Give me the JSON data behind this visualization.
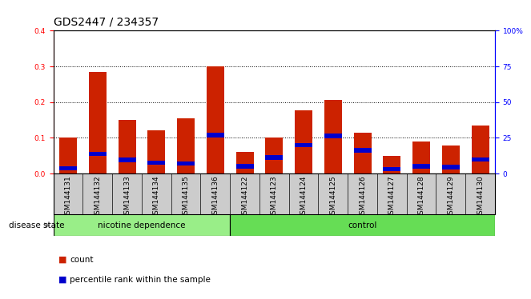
{
  "title": "GDS2447 / 234357",
  "samples": [
    "GSM144131",
    "GSM144132",
    "GSM144133",
    "GSM144134",
    "GSM144135",
    "GSM144136",
    "GSM144122",
    "GSM144123",
    "GSM144124",
    "GSM144125",
    "GSM144126",
    "GSM144127",
    "GSM144128",
    "GSM144129",
    "GSM144130"
  ],
  "count_values": [
    0.1,
    0.285,
    0.15,
    0.12,
    0.155,
    0.3,
    0.06,
    0.1,
    0.178,
    0.205,
    0.115,
    0.05,
    0.09,
    0.078,
    0.135
  ],
  "percentile_values": [
    0.015,
    0.055,
    0.038,
    0.03,
    0.028,
    0.108,
    0.02,
    0.045,
    0.08,
    0.105,
    0.065,
    0.012,
    0.02,
    0.018,
    0.04
  ],
  "bar_color": "#cc2200",
  "percentile_color": "#0000cc",
  "group1_label": "nicotine dependence",
  "group2_label": "control",
  "group1_count": 6,
  "group2_count": 9,
  "group1_color": "#99ee88",
  "group2_color": "#66dd55",
  "disease_state_label": "disease state",
  "ylim_left": [
    0,
    0.4
  ],
  "ylim_right": [
    0,
    100
  ],
  "yticks_left": [
    0,
    0.1,
    0.2,
    0.3,
    0.4
  ],
  "yticks_right": [
    0,
    25,
    50,
    75,
    100
  ],
  "ytick_labels_right": [
    "0",
    "25",
    "50",
    "75",
    "100%"
  ],
  "legend_count": "count",
  "legend_percentile": "percentile rank within the sample",
  "bg_color": "#ffffff",
  "tick_area_color": "#cccccc",
  "title_fontsize": 10,
  "tick_fontsize": 6.5,
  "label_fontsize": 7.5
}
